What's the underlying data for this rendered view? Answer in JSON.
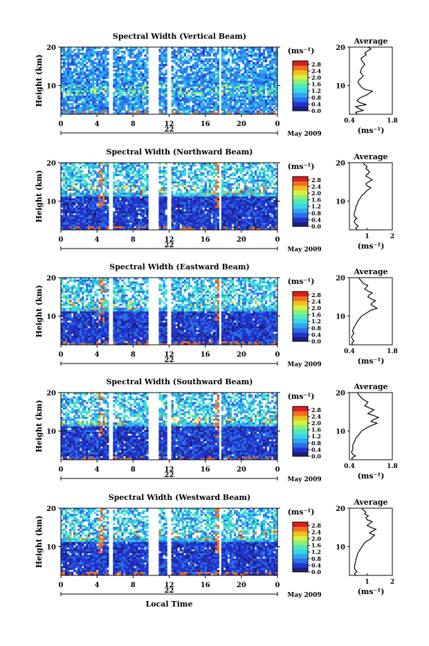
{
  "colors": {
    "background": "#ffffff",
    "axis": "#000000",
    "colormap": [
      "#1e1e7a",
      "#2233cc",
      "#2a6fe8",
      "#2fa6f0",
      "#36d6e8",
      "#4fe8b8",
      "#8cf07a",
      "#d8f040",
      "#f0c020",
      "#f07020",
      "#d82020"
    ]
  },
  "chart_data": [
    {
      "type": "heatmap",
      "title": "Spectral Width (Vertical Beam)",
      "ylabel": "Height (km)",
      "xticks": [
        "0",
        "4",
        "8",
        "12",
        "16",
        "20",
        "0"
      ],
      "xlim": [
        0,
        24
      ],
      "yticks": [
        "20",
        "10"
      ],
      "ylim": [
        2.5,
        20
      ],
      "date_day": "22",
      "date_label": "May 2009",
      "gaps": [
        [
          5.4,
          5.8
        ],
        [
          9.8,
          10.8
        ],
        [
          11.7,
          12.3
        ],
        [
          17.5,
          17.8
        ]
      ],
      "colorbar": {
        "unit_label": "(ms⁻¹)",
        "ticks": [
          "2.8",
          "2.4",
          "2.0",
          "1.6",
          "1.2",
          "0.8",
          "0.4",
          "0.0"
        ],
        "range": [
          0,
          3.0
        ]
      },
      "average": {
        "title": "Average",
        "xlabel": "(ms⁻¹)",
        "xticks": [
          "0.4",
          "1.8"
        ],
        "xlim": [
          0.4,
          1.8
        ],
        "yticks": [
          "20",
          "10"
        ],
        "height": [
          2.5,
          3,
          3.5,
          4,
          4.5,
          5,
          5.5,
          6,
          6.5,
          7,
          7.5,
          8,
          8.5,
          9,
          9.5,
          10,
          10.5,
          11,
          11.5,
          12,
          12.5,
          13,
          13.5,
          14,
          14.5,
          15,
          15.5,
          16,
          16.5,
          17,
          17.5,
          18,
          18.5,
          19,
          19.5,
          20
        ],
        "values": [
          0.65,
          0.6,
          0.85,
          0.7,
          0.6,
          0.95,
          0.75,
          0.65,
          0.7,
          0.8,
          0.95,
          1.05,
          1.15,
          0.9,
          0.8,
          0.75,
          0.7,
          0.68,
          0.72,
          0.8,
          0.85,
          0.8,
          0.75,
          0.78,
          0.8,
          0.85,
          0.9,
          0.85,
          0.8,
          0.78,
          0.85,
          0.95,
          0.9,
          1.0,
          1.1,
          1.0
        ]
      }
    },
    {
      "type": "heatmap",
      "title": "Spectral Width (Northward Beam)",
      "ylabel": "Height (km)",
      "xticks": [
        "0",
        "4",
        "8",
        "12",
        "16",
        "20",
        "0"
      ],
      "xlim": [
        0,
        24
      ],
      "yticks": [
        "20",
        "10"
      ],
      "ylim": [
        2.5,
        20
      ],
      "date_day": "22",
      "date_label": "May 2009",
      "gaps": [
        [
          5.4,
          5.8
        ],
        [
          9.8,
          10.8
        ],
        [
          11.7,
          12.3
        ],
        [
          17.5,
          17.8
        ]
      ],
      "colorbar": {
        "unit_label": "(ms⁻¹)",
        "ticks": [
          "2.8",
          "2.4",
          "2.0",
          "1.6",
          "1.2",
          "0.8",
          "0.4",
          "0.0"
        ],
        "range": [
          0,
          3.0
        ]
      },
      "average": {
        "title": "Average",
        "xlabel": "(ms⁻¹)",
        "xticks": [
          "1",
          "2"
        ],
        "xlim": [
          0.3,
          2.0
        ],
        "yticks": [
          "20",
          "10"
        ],
        "height": [
          2.5,
          3,
          3.5,
          4,
          4.5,
          5,
          5.5,
          6,
          6.5,
          7,
          7.5,
          8,
          8.5,
          9,
          9.5,
          10,
          10.5,
          11,
          11.5,
          12,
          12.5,
          13,
          13.5,
          14,
          14.5,
          15,
          15.5,
          16,
          16.5,
          17,
          17.5,
          18,
          18.5,
          19,
          19.5,
          20
        ],
        "values": [
          0.6,
          0.55,
          0.65,
          0.55,
          0.5,
          0.5,
          0.6,
          0.5,
          0.48,
          0.5,
          0.52,
          0.55,
          0.55,
          0.6,
          0.62,
          0.65,
          0.7,
          0.75,
          0.8,
          0.9,
          0.95,
          1.05,
          1.15,
          1.0,
          0.95,
          1.05,
          1.2,
          1.1,
          0.95,
          1.0,
          1.1,
          1.05,
          0.95,
          1.0,
          0.9,
          0.85
        ]
      }
    },
    {
      "type": "heatmap",
      "title": "Spectral Width (Eastward Beam)",
      "ylabel": "Height (km)",
      "xticks": [
        "0",
        "4",
        "8",
        "12",
        "16",
        "20",
        "0"
      ],
      "xlim": [
        0,
        24
      ],
      "yticks": [
        "20",
        "10"
      ],
      "ylim": [
        2.5,
        20
      ],
      "date_day": "22",
      "date_label": "May 2009",
      "gaps": [
        [
          5.4,
          5.8
        ],
        [
          9.8,
          10.8
        ],
        [
          11.7,
          12.3
        ],
        [
          17.5,
          17.8
        ]
      ],
      "colorbar": {
        "unit_label": "(ms⁻¹)",
        "ticks": [
          "2.8",
          "2.4",
          "2.0",
          "1.6",
          "1.2",
          "0.8",
          "0.4",
          "0.0"
        ],
        "range": [
          0,
          3.0
        ]
      },
      "average": {
        "title": "Average",
        "xlabel": "(ms⁻¹)",
        "xticks": [
          "0.4",
          "1.8"
        ],
        "xlim": [
          0.4,
          1.8
        ],
        "yticks": [
          "20",
          "10"
        ],
        "height": [
          2.5,
          3,
          3.5,
          4,
          4.5,
          5,
          5.5,
          6,
          6.5,
          7,
          7.5,
          8,
          8.5,
          9,
          9.5,
          10,
          10.5,
          11,
          11.5,
          12,
          12.5,
          13,
          13.5,
          14,
          14.5,
          15,
          15.5,
          16,
          16.5,
          17,
          17.5,
          18,
          18.5,
          19,
          19.5,
          20
        ],
        "values": [
          0.5,
          0.48,
          0.55,
          0.5,
          0.47,
          0.5,
          0.55,
          0.5,
          0.52,
          0.55,
          0.58,
          0.62,
          0.65,
          0.7,
          0.75,
          0.8,
          0.9,
          1.0,
          1.1,
          1.3,
          1.2,
          1.1,
          1.15,
          1.25,
          1.1,
          1.0,
          1.05,
          1.15,
          1.0,
          0.9,
          0.95,
          1.0,
          0.85,
          0.8,
          0.75,
          0.7
        ]
      }
    },
    {
      "type": "heatmap",
      "title": "Spectral Width (Southward Beam)",
      "ylabel": "Height (km)",
      "xticks": [
        "0",
        "4",
        "8",
        "12",
        "16",
        "20",
        "0"
      ],
      "xlim": [
        0,
        24
      ],
      "yticks": [
        "20",
        "10"
      ],
      "ylim": [
        2.5,
        20
      ],
      "date_day": "22",
      "date_label": "May 2009",
      "gaps": [
        [
          5.4,
          5.8
        ],
        [
          9.8,
          10.8
        ],
        [
          11.7,
          12.3
        ],
        [
          17.5,
          17.8
        ]
      ],
      "colorbar": {
        "unit_label": "(ms⁻¹)",
        "ticks": [
          "2.8",
          "2.4",
          "2.0",
          "1.6",
          "1.2",
          "0.8",
          "0.4",
          "0.0"
        ],
        "range": [
          0,
          3.0
        ]
      },
      "average": {
        "title": "Average",
        "xlabel": "(ms⁻¹)",
        "xticks": [
          "0.4",
          "1.8"
        ],
        "xlim": [
          0.4,
          1.8
        ],
        "yticks": [
          "20",
          "10"
        ],
        "height": [
          2.5,
          3,
          3.5,
          4,
          4.5,
          5,
          5.5,
          6,
          6.5,
          7,
          7.5,
          8,
          8.5,
          9,
          9.5,
          10,
          10.5,
          11,
          11.5,
          12,
          12.5,
          13,
          13.5,
          14,
          14.5,
          15,
          15.5,
          16,
          16.5,
          17,
          17.5,
          18,
          18.5,
          19,
          19.5,
          20
        ],
        "values": [
          0.5,
          0.48,
          0.6,
          0.5,
          0.47,
          0.5,
          0.52,
          0.5,
          0.52,
          0.55,
          0.58,
          0.6,
          0.65,
          0.7,
          0.75,
          0.8,
          0.9,
          1.0,
          1.15,
          1.3,
          1.1,
          1.2,
          1.35,
          1.2,
          1.0,
          1.1,
          1.2,
          1.05,
          0.9,
          0.95,
          1.0,
          0.9,
          0.8,
          0.75,
          0.7,
          0.65
        ]
      }
    },
    {
      "type": "heatmap",
      "title": "Spectral Width (Westward Beam)",
      "ylabel": "Height (km)",
      "xlabel": "Local Time",
      "xticks": [
        "0",
        "4",
        "8",
        "12",
        "16",
        "20",
        "0"
      ],
      "xlim": [
        0,
        24
      ],
      "yticks": [
        "20",
        "10"
      ],
      "ylim": [
        2.5,
        20
      ],
      "date_day": "22",
      "date_label": "May 2009",
      "gaps": [
        [
          5.4,
          5.8
        ],
        [
          9.8,
          10.8
        ],
        [
          11.7,
          12.3
        ],
        [
          17.5,
          17.8
        ]
      ],
      "colorbar": {
        "unit_label": "(ms⁻¹)",
        "ticks": [
          "2.8",
          "2.4",
          "2.0",
          "1.6",
          "1.2",
          "0.8",
          "0.4",
          "0.0"
        ],
        "range": [
          0,
          3.0
        ]
      },
      "average": {
        "title": "Average",
        "xlabel": "(ms⁻¹)",
        "xticks": [
          "1",
          "2"
        ],
        "xlim": [
          0.3,
          2.0
        ],
        "yticks": [
          "20",
          "10"
        ],
        "height": [
          2.5,
          3,
          3.5,
          4,
          4.5,
          5,
          5.5,
          6,
          6.5,
          7,
          7.5,
          8,
          8.5,
          9,
          9.5,
          10,
          10.5,
          11,
          11.5,
          12,
          12.5,
          13,
          13.5,
          14,
          14.5,
          15,
          15.5,
          16,
          16.5,
          17,
          17.5,
          18,
          18.5,
          19,
          19.5,
          20
        ],
        "values": [
          0.55,
          0.5,
          0.6,
          0.52,
          0.5,
          0.5,
          0.52,
          0.55,
          0.55,
          0.58,
          0.6,
          0.62,
          0.65,
          0.7,
          0.75,
          0.8,
          0.85,
          0.9,
          1.0,
          1.15,
          1.2,
          1.3,
          1.1,
          1.2,
          1.35,
          1.15,
          1.0,
          1.1,
          1.2,
          1.0,
          0.95,
          1.05,
          0.9,
          0.95,
          0.85,
          0.8
        ]
      }
    }
  ]
}
